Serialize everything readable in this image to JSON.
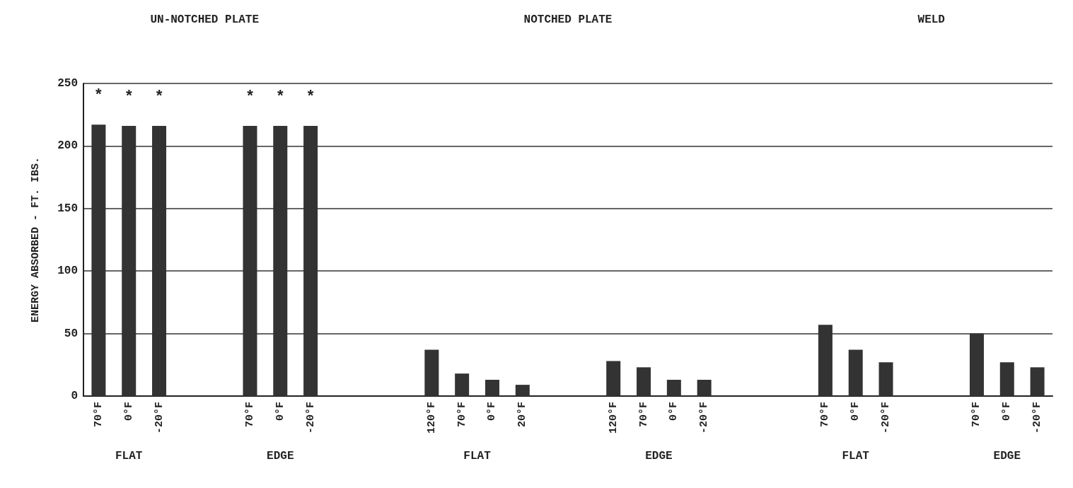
{
  "chart_data": {
    "type": "bar",
    "ylabel": "ENERGY ABSORBED - FT. IBS.",
    "categories": [
      "70°F",
      "0°F",
      "-20°F",
      null,
      null,
      "70°F",
      "0°F",
      "-20°F",
      null,
      null,
      null,
      "120°F",
      "70°F",
      "0°F",
      "20°F",
      null,
      null,
      "120°F",
      "70°F",
      "0°F",
      "-20°F",
      null,
      null,
      null,
      "70°F",
      "0°F",
      "-20°F",
      null,
      null,
      "70°F",
      "0°F",
      "-20°F"
    ],
    "values": [
      217,
      216,
      216,
      null,
      null,
      216,
      216,
      216,
      null,
      null,
      null,
      37,
      18,
      13,
      9,
      null,
      null,
      28,
      23,
      13,
      13,
      null,
      null,
      null,
      57,
      37,
      27,
      null,
      null,
      50,
      27,
      23
    ],
    "value_labels": [
      "*",
      "*",
      "*",
      null,
      null,
      "*",
      "*",
      "*",
      null,
      null,
      null,
      null,
      null,
      null,
      null,
      null,
      null,
      null,
      null,
      null,
      null,
      null,
      null,
      null,
      null,
      null,
      null,
      null,
      null,
      null,
      null,
      null
    ],
    "color": "#333333",
    "ylim": [
      0,
      250
    ],
    "yticks": [
      0,
      50,
      100,
      150,
      200,
      250
    ],
    "grid": "y",
    "annotations": [
      "FLAT",
      "EDGE",
      "FLAT",
      "EDGE",
      "FLAT",
      "EDGE",
      "UN-NOTCHED PLATE",
      "NOTCHED PLATE",
      "WELD"
    ]
  }
}
